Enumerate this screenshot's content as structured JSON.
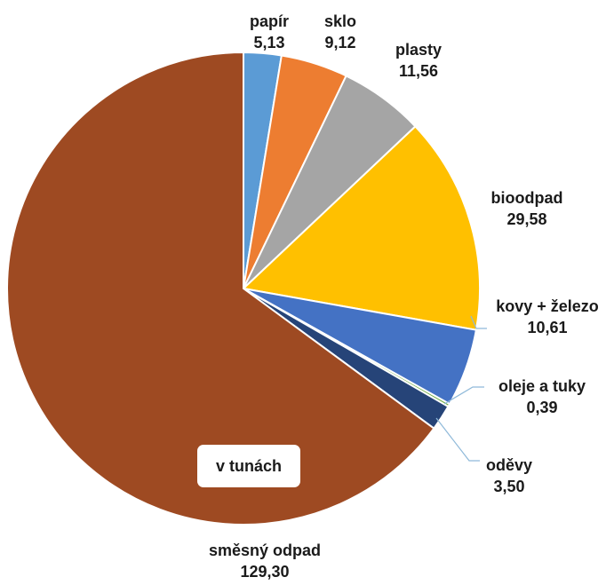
{
  "chart_data": {
    "type": "pie",
    "unit_note": "v tunách",
    "start_angle_deg": 0,
    "direction": "clockwise",
    "slices": [
      {
        "label": "papír",
        "value_label": "5,13",
        "value": 5.13,
        "color": "#5b9bd5"
      },
      {
        "label": "sklo",
        "value_label": "9,12",
        "value": 9.12,
        "color": "#ed7d31"
      },
      {
        "label": "plasty",
        "value_label": "11,56",
        "value": 11.56,
        "color": "#a5a5a5"
      },
      {
        "label": "bioodpad",
        "value_label": "29,58",
        "value": 29.58,
        "color": "#ffc000"
      },
      {
        "label": "kovy + železo",
        "value_label": "10,61",
        "value": 10.61,
        "color": "#4472c4"
      },
      {
        "label": "oleje a tuky",
        "value_label": "0,39",
        "value": 0.39,
        "color": "#70ad47"
      },
      {
        "label": "oděvy",
        "value_label": "3,50",
        "value": 3.5,
        "color": "#264478"
      },
      {
        "label": "směsný odpad",
        "value_label": "129,30",
        "value": 129.3,
        "color": "#9e4a22"
      }
    ]
  }
}
